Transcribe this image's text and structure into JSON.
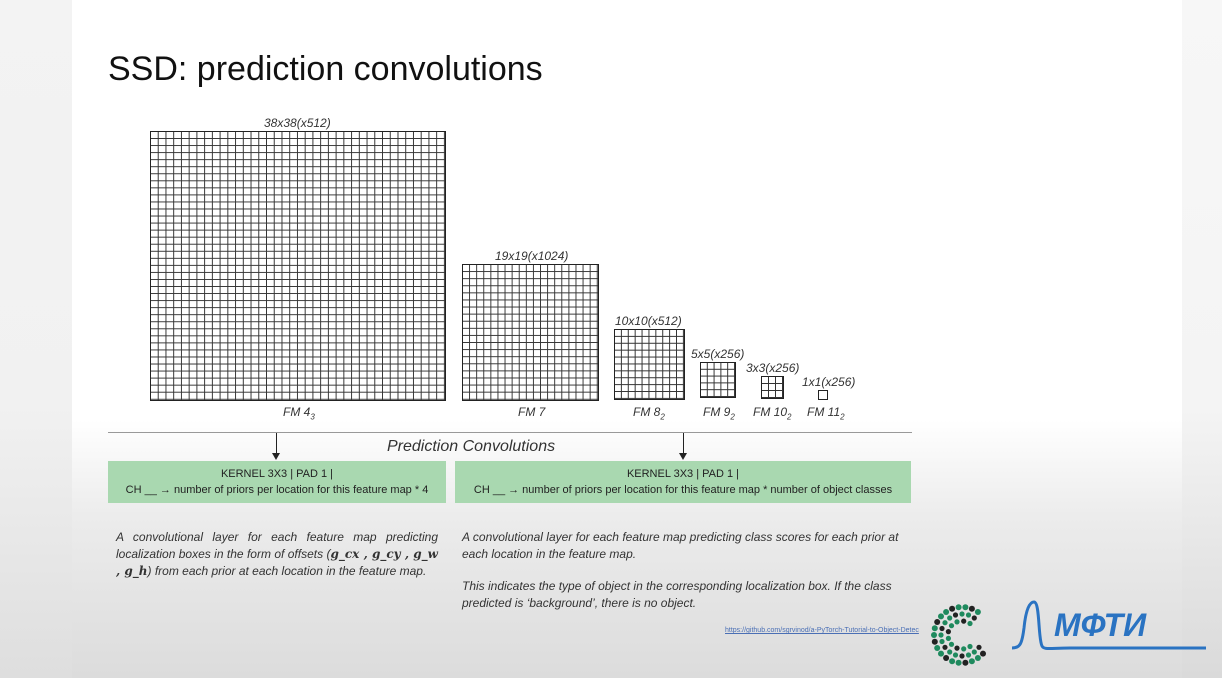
{
  "slide": {
    "title": "SSD: prediction convolutions"
  },
  "feature_maps": [
    {
      "id": "fm4",
      "size_label": "38x38(x512)",
      "name": "FM 4",
      "sub": "3",
      "cells": 38
    },
    {
      "id": "fm7",
      "size_label": "19x19(x1024)",
      "name": "FM 7",
      "sub": "",
      "cells": 19
    },
    {
      "id": "fm8",
      "size_label": "10x10(x512)",
      "name": "FM 8",
      "sub": "2",
      "cells": 10
    },
    {
      "id": "fm9",
      "size_label": "5x5(x256)",
      "name": "FM 9",
      "sub": "2",
      "cells": 5
    },
    {
      "id": "fm10",
      "size_label": "3x3(x256)",
      "name": "FM 10",
      "sub": "2",
      "cells": 3
    },
    {
      "id": "fm11",
      "size_label": "1x1(x256)",
      "name": "FM 11",
      "sub": "2",
      "cells": 1
    }
  ],
  "prediction": {
    "title": "Prediction Convolutions",
    "loc_box": {
      "line1": "KERNEL 3X3 | PAD 1 |",
      "line2": "CH __ → number of priors per location for this feature map * 4"
    },
    "cls_box": {
      "line1": "KERNEL 3X3 | PAD 1 |",
      "line2": "CH __ → number of priors per location for this feature map * number of object classes"
    },
    "loc_desc": {
      "part1": "A convolutional layer for each feature map predicting localization boxes in the form of offsets (",
      "offsets": "g_cx , g_cy , g_w , g_h",
      "part2": ") from each prior at each location in the feature map."
    },
    "cls_desc": {
      "para1": "A convolutional layer for each feature map predicting class scores for each prior at each location in the feature map.",
      "para2": "This indicates the type of object in the corresponding localization box. If the class predicted is ‘background’, there is no object."
    }
  },
  "footer": {
    "source_link": "https://github.com/sgrvinod/a-PyTorch-Tutorial-to-Object-Detec",
    "logo_text": "МФТИ"
  },
  "colors": {
    "kernel_box": "#a9d8b0",
    "logo_green": "#1f8a5e",
    "logo_blue": "#2a73c2",
    "link_blue": "#4a6fb5"
  }
}
